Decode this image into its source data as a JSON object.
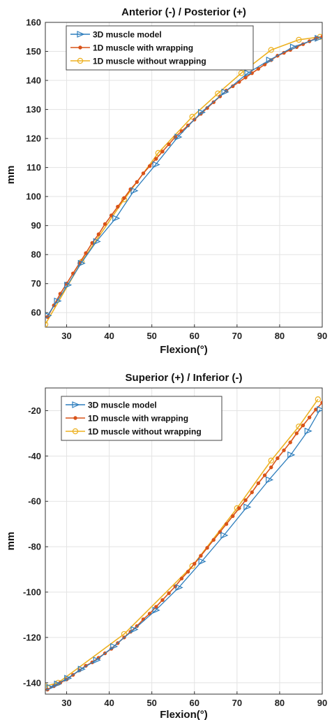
{
  "chart_data": [
    {
      "type": "line",
      "title": "Anterior (-) / Posterior (+)",
      "xlabel": "Flexion(°)",
      "ylabel": "mm",
      "xlim": [
        25,
        90
      ],
      "ylim": [
        55,
        160
      ],
      "xticks": [
        30,
        40,
        50,
        60,
        70,
        80,
        90
      ],
      "yticks": [
        60,
        70,
        80,
        90,
        100,
        110,
        120,
        130,
        140,
        150,
        160
      ],
      "grid": true,
      "legend": "top-left",
      "series": [
        {
          "name": "3D muscle model",
          "color": "#2e7ebd",
          "marker": "triangle-right",
          "x": [
            25.5,
            27.8,
            30.2,
            33.4,
            37.0,
            41.5,
            45.8,
            50.9,
            56.1,
            61.6,
            67.1,
            72.5,
            77.6,
            83.2,
            89.0
          ],
          "y": [
            59,
            64,
            69.5,
            77,
            84.5,
            92.5,
            102,
            111,
            120.5,
            129,
            136,
            142.5,
            147,
            151.5,
            154.5
          ]
        },
        {
          "name": "1D muscle with wrapping",
          "color": "#d95319",
          "marker": "dot",
          "x": [
            25.5,
            27.0,
            28.5,
            30.0,
            31.5,
            33.0,
            34.5,
            36.0,
            37.5,
            39.0,
            40.5,
            42.0,
            43.5,
            45.0,
            46.5,
            48.0,
            49.5,
            51.0,
            52.5,
            54.0,
            55.5,
            57.0,
            58.5,
            60.0,
            61.5,
            63.0,
            64.5,
            66.0,
            67.5,
            69.0,
            70.5,
            72.0,
            73.5,
            75.0,
            76.5,
            78.0,
            79.5,
            81.0,
            82.5,
            84.0,
            85.5,
            87.0,
            88.5,
            90.0
          ],
          "y": [
            58.5,
            62.5,
            66.5,
            70,
            73.5,
            77,
            80.5,
            84,
            87,
            90.5,
            93.5,
            96.5,
            99.5,
            102.5,
            105,
            108,
            110.5,
            113,
            115.5,
            118,
            120.5,
            122.5,
            124.5,
            126.5,
            128.5,
            130.5,
            132.5,
            134.5,
            136.5,
            138,
            139.5,
            141,
            142.5,
            144,
            145.5,
            147,
            148.5,
            149.5,
            150.5,
            151.5,
            152.5,
            153.5,
            154.5,
            155
          ]
        },
        {
          "name": "1D muscle without wrapping",
          "color": "#edb120",
          "marker": "circle",
          "x": [
            25.0,
            33.5,
            43.5,
            51.5,
            59.5,
            65.5,
            71.0,
            78.0,
            84.5,
            89.5
          ],
          "y": [
            56,
            77.5,
            99,
            115,
            127.5,
            135.5,
            142.5,
            150.5,
            154,
            155
          ]
        }
      ]
    },
    {
      "type": "line",
      "title": "Superior (+) / Inferior (-)",
      "xlabel": "Flexion(°)",
      "ylabel": "mm",
      "xlim": [
        25,
        90
      ],
      "ylim": [
        -145,
        -10
      ],
      "xticks": [
        30,
        40,
        50,
        60,
        70,
        80,
        90
      ],
      "yticks": [
        -140,
        -120,
        -100,
        -80,
        -60,
        -40,
        -20
      ],
      "grid": true,
      "legend": "top-left",
      "series": [
        {
          "name": "3D muscle model",
          "color": "#2e7ebd",
          "marker": "triangle-right",
          "x": [
            26.0,
            27.8,
            30.2,
            33.4,
            37.0,
            41.0,
            45.8,
            50.9,
            56.3,
            61.7,
            66.9,
            72.3,
            77.5,
            82.6,
            86.6,
            89.5
          ],
          "y": [
            -142,
            -140.5,
            -138,
            -134,
            -130,
            -124,
            -116.5,
            -108,
            -98,
            -86.5,
            -75,
            -62.5,
            -50.5,
            -39.5,
            -29,
            -19.5
          ]
        },
        {
          "name": "1D muscle with wrapping",
          "color": "#d95319",
          "marker": "dot",
          "x": [
            25.5,
            27.0,
            28.5,
            30.0,
            31.5,
            33.0,
            34.5,
            36.0,
            37.5,
            39.0,
            40.5,
            42.0,
            43.5,
            45.0,
            46.5,
            48.0,
            49.5,
            51.0,
            52.5,
            54.0,
            55.5,
            57.0,
            58.5,
            60.0,
            61.5,
            63.0,
            64.5,
            66.0,
            67.5,
            69.0,
            70.5,
            72.0,
            73.5,
            75.0,
            76.5,
            78.0,
            79.5,
            81.0,
            82.5,
            84.0,
            85.5,
            87.0,
            88.5,
            90.0
          ],
          "y": [
            -143,
            -141.5,
            -140,
            -138.5,
            -136.5,
            -134.5,
            -132.5,
            -131,
            -129,
            -127,
            -125,
            -122.5,
            -120,
            -117.5,
            -115,
            -112,
            -109.5,
            -106.5,
            -103.5,
            -100.5,
            -97.5,
            -94,
            -91,
            -87.5,
            -84,
            -80.5,
            -77,
            -73.5,
            -70,
            -66.5,
            -63,
            -59.5,
            -56,
            -52,
            -48.5,
            -45,
            -41,
            -37.5,
            -34,
            -30,
            -26.5,
            -23,
            -19.5,
            -16.5
          ]
        },
        {
          "name": "1D muscle without wrapping",
          "color": "#edb120",
          "marker": "circle",
          "x": [
            25.0,
            28.0,
            43.5,
            59.5,
            70.0,
            78.0,
            84.5,
            89.0
          ],
          "y": [
            -141.5,
            -140,
            -118.5,
            -88.5,
            -63,
            -42,
            -27,
            -15
          ]
        }
      ]
    }
  ]
}
